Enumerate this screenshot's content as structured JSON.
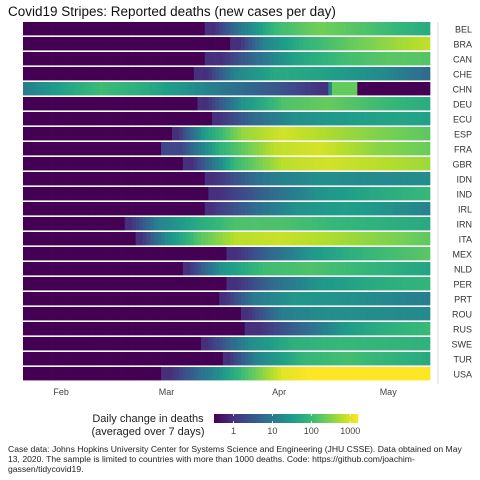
{
  "chart_data": {
    "type": "heatmap",
    "title": "Covid19 Stripes: Reported deaths (new cases per day)",
    "x_axis": {
      "start": "2020-01-22",
      "end": "2020-05-12",
      "ticks": [
        {
          "date": "2020-02-01",
          "label": "Feb"
        },
        {
          "date": "2020-03-01",
          "label": "Mar"
        },
        {
          "date": "2020-04-01",
          "label": "Apr"
        },
        {
          "date": "2020-05-01",
          "label": "May"
        }
      ]
    },
    "color_scale": {
      "colors": [
        "#440154",
        "#482878",
        "#3e4989",
        "#31688e",
        "#26828e",
        "#1f9e89",
        "#35b779",
        "#6ece58",
        "#b5de2b",
        "#fde725"
      ],
      "scale": "log",
      "domain_log10_min": -0.5,
      "domain_log10_max": 3.2,
      "ticks": [
        {
          "value": 1,
          "label": "1"
        },
        {
          "value": 10,
          "label": "10"
        },
        {
          "value": 100,
          "label": "100"
        },
        {
          "value": 1000,
          "label": "1000"
        }
      ]
    },
    "legend": {
      "title_line1": "Daily change in deaths",
      "title_line2": "(averaged over 7 days)",
      "position": "bottom"
    },
    "rows": [
      {
        "country": "BEL",
        "series": [
          {
            "date": "2020-03-10",
            "v": 0
          },
          {
            "date": "2020-03-14",
            "v": 1
          },
          {
            "date": "2020-03-22",
            "v": 12
          },
          {
            "date": "2020-03-31",
            "v": 100
          },
          {
            "date": "2020-04-12",
            "v": 250
          },
          {
            "date": "2020-04-25",
            "v": 140
          },
          {
            "date": "2020-05-12",
            "v": 60
          }
        ]
      },
      {
        "country": "BRA",
        "series": [
          {
            "date": "2020-03-17",
            "v": 0
          },
          {
            "date": "2020-03-21",
            "v": 1
          },
          {
            "date": "2020-03-28",
            "v": 15
          },
          {
            "date": "2020-04-08",
            "v": 80
          },
          {
            "date": "2020-04-22",
            "v": 220
          },
          {
            "date": "2020-05-05",
            "v": 500
          },
          {
            "date": "2020-05-12",
            "v": 700
          }
        ]
      },
      {
        "country": "CAN",
        "series": [
          {
            "date": "2020-03-08",
            "v": 0
          },
          {
            "date": "2020-03-16",
            "v": 1
          },
          {
            "date": "2020-03-25",
            "v": 6
          },
          {
            "date": "2020-04-05",
            "v": 40
          },
          {
            "date": "2020-04-18",
            "v": 110
          },
          {
            "date": "2020-05-01",
            "v": 170
          },
          {
            "date": "2020-05-12",
            "v": 160
          }
        ]
      },
      {
        "country": "CHE",
        "series": [
          {
            "date": "2020-03-05",
            "v": 0
          },
          {
            "date": "2020-03-12",
            "v": 1
          },
          {
            "date": "2020-03-20",
            "v": 15
          },
          {
            "date": "2020-03-31",
            "v": 55
          },
          {
            "date": "2020-04-12",
            "v": 45
          },
          {
            "date": "2020-04-30",
            "v": 18
          },
          {
            "date": "2020-05-12",
            "v": 6
          }
        ]
      },
      {
        "country": "CHN",
        "series": [
          {
            "date": "2020-01-22",
            "v": 12
          },
          {
            "date": "2020-02-01",
            "v": 40
          },
          {
            "date": "2020-02-12",
            "v": 110
          },
          {
            "date": "2020-02-22",
            "v": 70
          },
          {
            "date": "2020-03-05",
            "v": 28
          },
          {
            "date": "2020-03-18",
            "v": 8
          },
          {
            "date": "2020-04-01",
            "v": 3
          },
          {
            "date": "2020-04-14",
            "v": 1
          },
          {
            "date": "2020-04-16",
            "v": 200
          },
          {
            "date": "2020-04-22",
            "v": 200
          },
          {
            "date": "2020-04-23",
            "v": 0
          },
          {
            "date": "2020-05-12",
            "v": 0
          }
        ]
      },
      {
        "country": "DEU",
        "series": [
          {
            "date": "2020-03-08",
            "v": 0
          },
          {
            "date": "2020-03-12",
            "v": 1
          },
          {
            "date": "2020-03-22",
            "v": 25
          },
          {
            "date": "2020-04-02",
            "v": 140
          },
          {
            "date": "2020-04-14",
            "v": 210
          },
          {
            "date": "2020-04-28",
            "v": 110
          },
          {
            "date": "2020-05-12",
            "v": 60
          }
        ]
      },
      {
        "country": "ECU",
        "series": [
          {
            "date": "2020-03-12",
            "v": 0
          },
          {
            "date": "2020-03-15",
            "v": 1
          },
          {
            "date": "2020-03-25",
            "v": 6
          },
          {
            "date": "2020-04-05",
            "v": 22
          },
          {
            "date": "2020-04-20",
            "v": 35
          },
          {
            "date": "2020-05-05",
            "v": 45
          },
          {
            "date": "2020-05-12",
            "v": 40
          }
        ]
      },
      {
        "country": "ESP",
        "series": [
          {
            "date": "2020-03-01",
            "v": 0
          },
          {
            "date": "2020-03-04",
            "v": 1
          },
          {
            "date": "2020-03-12",
            "v": 40
          },
          {
            "date": "2020-03-22",
            "v": 400
          },
          {
            "date": "2020-04-02",
            "v": 900
          },
          {
            "date": "2020-04-14",
            "v": 550
          },
          {
            "date": "2020-04-28",
            "v": 300
          },
          {
            "date": "2020-05-12",
            "v": 180
          }
        ]
      },
      {
        "country": "FRA",
        "series": [
          {
            "date": "2020-02-14",
            "v": 0
          },
          {
            "date": "2020-02-24",
            "v": 0
          },
          {
            "date": "2020-03-05",
            "v": 2
          },
          {
            "date": "2020-03-16",
            "v": 80
          },
          {
            "date": "2020-03-31",
            "v": 700
          },
          {
            "date": "2020-04-12",
            "v": 950
          },
          {
            "date": "2020-04-28",
            "v": 350
          },
          {
            "date": "2020-05-12",
            "v": 220
          }
        ]
      },
      {
        "country": "GBR",
        "series": [
          {
            "date": "2020-03-04",
            "v": 0
          },
          {
            "date": "2020-03-08",
            "v": 1
          },
          {
            "date": "2020-03-20",
            "v": 100
          },
          {
            "date": "2020-04-02",
            "v": 650
          },
          {
            "date": "2020-04-14",
            "v": 900
          },
          {
            "date": "2020-04-28",
            "v": 650
          },
          {
            "date": "2020-05-12",
            "v": 450
          }
        ]
      },
      {
        "country": "IDN",
        "series": [
          {
            "date": "2020-03-10",
            "v": 0
          },
          {
            "date": "2020-03-14",
            "v": 1
          },
          {
            "date": "2020-03-28",
            "v": 10
          },
          {
            "date": "2020-04-12",
            "v": 22
          },
          {
            "date": "2020-04-28",
            "v": 18
          },
          {
            "date": "2020-05-12",
            "v": 20
          }
        ]
      },
      {
        "country": "IND",
        "series": [
          {
            "date": "2020-03-10",
            "v": 0
          },
          {
            "date": "2020-03-15",
            "v": 1
          },
          {
            "date": "2020-03-30",
            "v": 6
          },
          {
            "date": "2020-04-12",
            "v": 25
          },
          {
            "date": "2020-04-28",
            "v": 55
          },
          {
            "date": "2020-05-12",
            "v": 95
          }
        ]
      },
      {
        "country": "IRL",
        "series": [
          {
            "date": "2020-03-10",
            "v": 0
          },
          {
            "date": "2020-03-13",
            "v": 1
          },
          {
            "date": "2020-03-25",
            "v": 6
          },
          {
            "date": "2020-04-06",
            "v": 25
          },
          {
            "date": "2020-04-20",
            "v": 38
          },
          {
            "date": "2020-05-12",
            "v": 15
          }
        ]
      },
      {
        "country": "IRN",
        "series": [
          {
            "date": "2020-02-18",
            "v": 0
          },
          {
            "date": "2020-02-20",
            "v": 1
          },
          {
            "date": "2020-02-28",
            "v": 15
          },
          {
            "date": "2020-03-10",
            "v": 60
          },
          {
            "date": "2020-03-20",
            "v": 140
          },
          {
            "date": "2020-04-02",
            "v": 135
          },
          {
            "date": "2020-04-20",
            "v": 85
          },
          {
            "date": "2020-05-12",
            "v": 55
          }
        ]
      },
      {
        "country": "ITA",
        "series": [
          {
            "date": "2020-02-20",
            "v": 0
          },
          {
            "date": "2020-02-23",
            "v": 1
          },
          {
            "date": "2020-03-01",
            "v": 20
          },
          {
            "date": "2020-03-10",
            "v": 160
          },
          {
            "date": "2020-03-20",
            "v": 650
          },
          {
            "date": "2020-04-01",
            "v": 800
          },
          {
            "date": "2020-04-15",
            "v": 550
          },
          {
            "date": "2020-05-01",
            "v": 300
          },
          {
            "date": "2020-05-12",
            "v": 190
          }
        ]
      },
      {
        "country": "MEX",
        "series": [
          {
            "date": "2020-03-16",
            "v": 0
          },
          {
            "date": "2020-03-20",
            "v": 1
          },
          {
            "date": "2020-03-30",
            "v": 6
          },
          {
            "date": "2020-04-10",
            "v": 30
          },
          {
            "date": "2020-04-25",
            "v": 90
          },
          {
            "date": "2020-05-12",
            "v": 170
          }
        ]
      },
      {
        "country": "NLD",
        "series": [
          {
            "date": "2020-03-04",
            "v": 0
          },
          {
            "date": "2020-03-07",
            "v": 1
          },
          {
            "date": "2020-03-16",
            "v": 25
          },
          {
            "date": "2020-03-28",
            "v": 110
          },
          {
            "date": "2020-04-10",
            "v": 140
          },
          {
            "date": "2020-04-25",
            "v": 90
          },
          {
            "date": "2020-05-12",
            "v": 45
          }
        ]
      },
      {
        "country": "PER",
        "series": [
          {
            "date": "2020-03-16",
            "v": 0
          },
          {
            "date": "2020-03-20",
            "v": 1
          },
          {
            "date": "2020-03-30",
            "v": 6
          },
          {
            "date": "2020-04-12",
            "v": 28
          },
          {
            "date": "2020-04-28",
            "v": 60
          },
          {
            "date": "2020-05-12",
            "v": 85
          }
        ]
      },
      {
        "country": "PRT",
        "series": [
          {
            "date": "2020-03-14",
            "v": 0
          },
          {
            "date": "2020-03-17",
            "v": 1
          },
          {
            "date": "2020-03-25",
            "v": 10
          },
          {
            "date": "2020-04-05",
            "v": 28
          },
          {
            "date": "2020-04-18",
            "v": 25
          },
          {
            "date": "2020-05-12",
            "v": 12
          }
        ]
      },
      {
        "country": "ROU",
        "series": [
          {
            "date": "2020-03-20",
            "v": 0
          },
          {
            "date": "2020-03-23",
            "v": 1
          },
          {
            "date": "2020-04-02",
            "v": 12
          },
          {
            "date": "2020-04-15",
            "v": 22
          },
          {
            "date": "2020-05-12",
            "v": 18
          }
        ]
      },
      {
        "country": "RUS",
        "series": [
          {
            "date": "2020-03-20",
            "v": 0
          },
          {
            "date": "2020-03-26",
            "v": 1
          },
          {
            "date": "2020-04-08",
            "v": 6
          },
          {
            "date": "2020-04-20",
            "v": 35
          },
          {
            "date": "2020-05-01",
            "v": 70
          },
          {
            "date": "2020-05-12",
            "v": 100
          }
        ]
      },
      {
        "country": "SWE",
        "series": [
          {
            "date": "2020-03-09",
            "v": 0
          },
          {
            "date": "2020-03-12",
            "v": 1
          },
          {
            "date": "2020-03-24",
            "v": 20
          },
          {
            "date": "2020-04-05",
            "v": 70
          },
          {
            "date": "2020-04-18",
            "v": 95
          },
          {
            "date": "2020-05-12",
            "v": 75
          }
        ]
      },
      {
        "country": "TUR",
        "series": [
          {
            "date": "2020-03-15",
            "v": 0
          },
          {
            "date": "2020-03-18",
            "v": 1
          },
          {
            "date": "2020-03-26",
            "v": 15
          },
          {
            "date": "2020-04-08",
            "v": 90
          },
          {
            "date": "2020-04-20",
            "v": 120
          },
          {
            "date": "2020-05-12",
            "v": 55
          }
        ]
      },
      {
        "country": "USA",
        "series": [
          {
            "date": "2020-02-27",
            "v": 0
          },
          {
            "date": "2020-03-02",
            "v": 1
          },
          {
            "date": "2020-03-12",
            "v": 10
          },
          {
            "date": "2020-03-22",
            "v": 110
          },
          {
            "date": "2020-04-02",
            "v": 1100
          },
          {
            "date": "2020-04-15",
            "v": 2000
          },
          {
            "date": "2020-05-01",
            "v": 1900
          },
          {
            "date": "2020-05-12",
            "v": 1700
          }
        ]
      }
    ]
  },
  "caption": "Case data: Johns Hopkins University Center for Systems Science and Engineering (JHU CSSE). Data obtained on May 13, 2020. The sample is limited to countries with more than 1000 deaths. Code: https://github.com/joachim-gassen/tidycovid19."
}
